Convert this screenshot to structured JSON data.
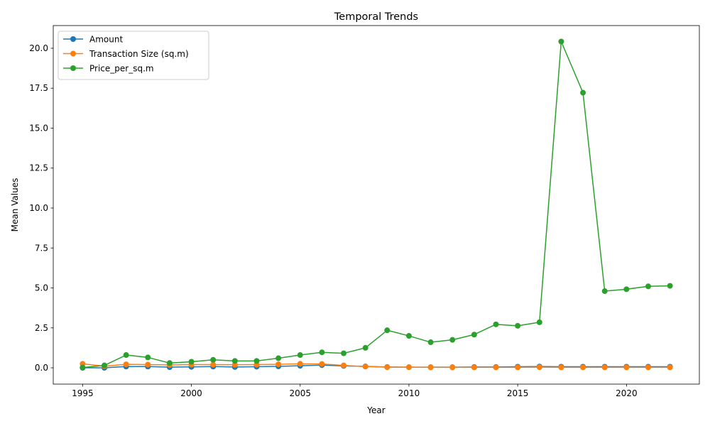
{
  "chart_data": {
    "type": "line",
    "title": "Temporal Trends",
    "xlabel": "Year",
    "ylabel": "Mean Values",
    "xlim": [
      1993.65,
      2023.35
    ],
    "ylim": [
      -1.02,
      21.42
    ],
    "xticks": [
      1995,
      2000,
      2005,
      2010,
      2015,
      2020
    ],
    "xtick_labels": [
      "1995",
      "2000",
      "2005",
      "2010",
      "2015",
      "2020"
    ],
    "yticks": [
      0.0,
      2.5,
      5.0,
      7.5,
      10.0,
      12.5,
      15.0,
      17.5,
      20.0
    ],
    "ytick_labels": [
      "0.0",
      "2.5",
      "5.0",
      "7.5",
      "10.0",
      "12.5",
      "15.0",
      "17.5",
      "20.0"
    ],
    "grid": false,
    "legend_position": "upper-left",
    "x": [
      1995,
      1996,
      1997,
      1998,
      1999,
      2000,
      2001,
      2002,
      2003,
      2004,
      2005,
      2006,
      2007,
      2008,
      2009,
      2010,
      2011,
      2012,
      2013,
      2014,
      2015,
      2016,
      2017,
      2018,
      2019,
      2020,
      2021,
      2022
    ],
    "series": [
      {
        "name": "Amount",
        "color": "#1f77b4",
        "values": [
          0.0,
          0.0,
          0.08,
          0.08,
          0.04,
          0.06,
          0.08,
          0.05,
          0.07,
          0.09,
          0.13,
          0.17,
          0.12,
          0.09,
          0.05,
          0.04,
          0.04,
          0.04,
          0.05,
          0.05,
          0.07,
          0.08,
          0.07,
          0.07,
          0.07,
          0.07,
          0.07,
          0.07
        ]
      },
      {
        "name": "Transaction Size (sq.m)",
        "color": "#ff7f0e",
        "values": [
          0.25,
          0.1,
          0.22,
          0.2,
          0.18,
          0.2,
          0.2,
          0.19,
          0.2,
          0.22,
          0.25,
          0.24,
          0.15,
          0.08,
          0.04,
          0.04,
          0.03,
          0.03,
          0.03,
          0.03,
          0.03,
          0.04,
          0.03,
          0.03,
          0.03,
          0.03,
          0.03,
          0.03
        ]
      },
      {
        "name": "Price_per_sq.m",
        "color": "#2ca02c",
        "values": [
          0.02,
          0.15,
          0.8,
          0.65,
          0.3,
          0.38,
          0.5,
          0.43,
          0.43,
          0.6,
          0.8,
          0.97,
          0.91,
          1.25,
          2.35,
          2.0,
          1.6,
          1.75,
          2.08,
          2.72,
          2.63,
          2.85,
          20.42,
          17.22,
          4.8,
          4.92,
          5.1,
          5.13
        ]
      }
    ]
  }
}
